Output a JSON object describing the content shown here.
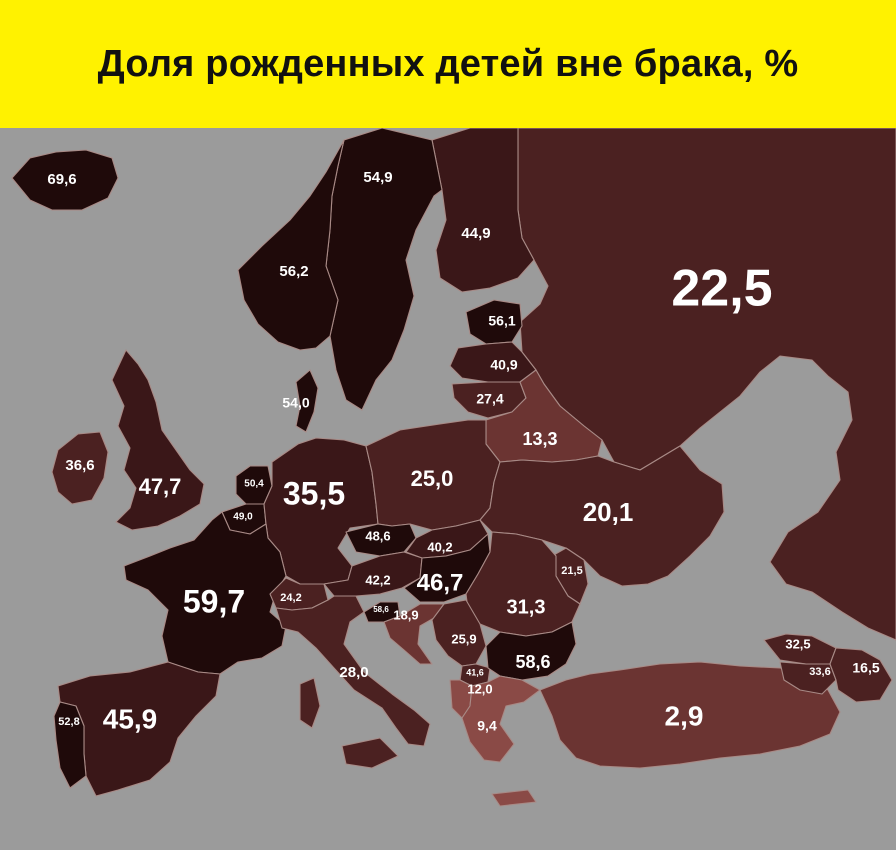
{
  "title": "Доля рожденных детей вне брака, %",
  "colors": {
    "banner": "#fff200",
    "sea": "#9b9b9b",
    "darkest": "#1f0a0a",
    "dark": "#3a1718",
    "mid": "#4b2121",
    "light": "#6b3432",
    "lightest": "#8a4a46"
  },
  "countries": [
    {
      "id": "iceland",
      "value": "69,6"
    },
    {
      "id": "sweden",
      "value": "54,9"
    },
    {
      "id": "finland",
      "value": "44,9"
    },
    {
      "id": "russia",
      "value": "22,5"
    },
    {
      "id": "norway",
      "value": "56,2"
    },
    {
      "id": "estonia",
      "value": "56,1"
    },
    {
      "id": "latvia",
      "value": "40,9"
    },
    {
      "id": "lithuania",
      "value": "27,4"
    },
    {
      "id": "denmark",
      "value": "54,0"
    },
    {
      "id": "belarus",
      "value": "13,3"
    },
    {
      "id": "ireland",
      "value": "36,6"
    },
    {
      "id": "uk",
      "value": "47,7"
    },
    {
      "id": "netherlands",
      "value": "50,4"
    },
    {
      "id": "germany",
      "value": "35,5"
    },
    {
      "id": "poland",
      "value": "25,0"
    },
    {
      "id": "belgium",
      "value": "49,0"
    },
    {
      "id": "ukraine",
      "value": "20,1"
    },
    {
      "id": "czechia",
      "value": "48,6"
    },
    {
      "id": "slovakia",
      "value": "40,2"
    },
    {
      "id": "moldova",
      "value": "21,5"
    },
    {
      "id": "france",
      "value": "59,7"
    },
    {
      "id": "switzerland",
      "value": "24,2"
    },
    {
      "id": "austria",
      "value": "42,2"
    },
    {
      "id": "hungary",
      "value": "46,7"
    },
    {
      "id": "romania",
      "value": "31,3"
    },
    {
      "id": "slovenia",
      "value": "58,6"
    },
    {
      "id": "croatia",
      "value": "18,9"
    },
    {
      "id": "serbia",
      "value": "25,9"
    },
    {
      "id": "georgia",
      "value": "32,5"
    },
    {
      "id": "italy",
      "value": "28,0"
    },
    {
      "id": "north-macedonia",
      "value": "41,6"
    },
    {
      "id": "bulgaria",
      "value": "58,6"
    },
    {
      "id": "armenia",
      "value": "33,6"
    },
    {
      "id": "azerbaijan",
      "value": "16,5"
    },
    {
      "id": "portugal",
      "value": "52,8"
    },
    {
      "id": "spain",
      "value": "45,9"
    },
    {
      "id": "albania",
      "value": "12,0"
    },
    {
      "id": "turkey",
      "value": "2,9"
    },
    {
      "id": "greece",
      "value": "9,4"
    }
  ]
}
